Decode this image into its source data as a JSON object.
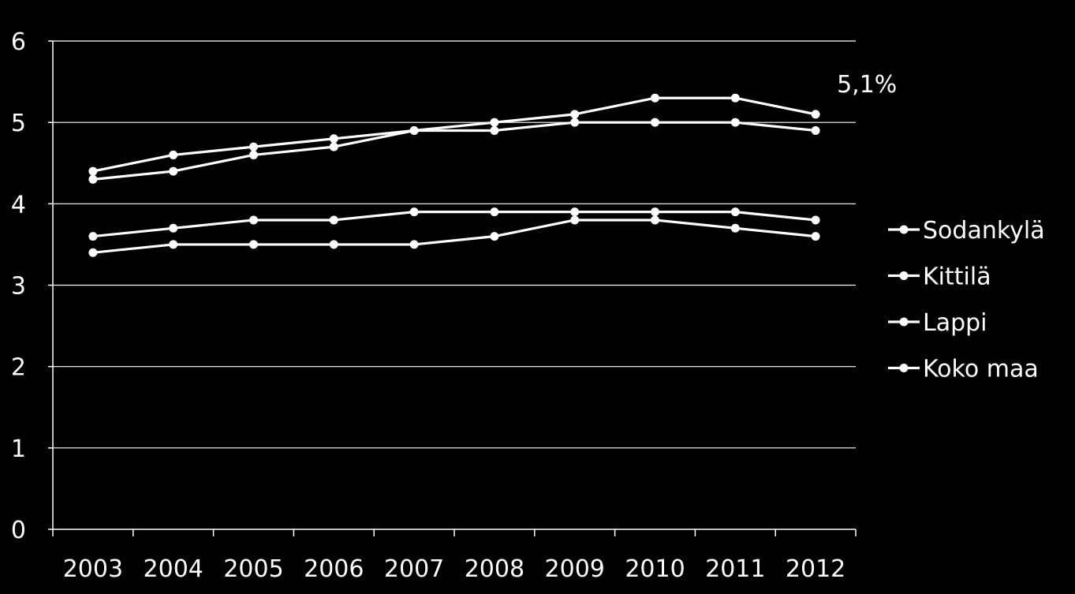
{
  "chart_data": {
    "type": "line",
    "x": [
      "2003",
      "2004",
      "2005",
      "2006",
      "2007",
      "2008",
      "2009",
      "2010",
      "2011",
      "2012"
    ],
    "series": [
      {
        "name": "Sodankylä",
        "values": [
          4.4,
          4.6,
          4.7,
          4.8,
          4.9,
          4.9,
          5.0,
          5.0,
          5.0,
          4.9
        ]
      },
      {
        "name": "Kittilä",
        "values": [
          4.3,
          4.4,
          4.6,
          4.7,
          4.9,
          5.0,
          5.1,
          5.3,
          5.3,
          5.1
        ]
      },
      {
        "name": "Lappi",
        "values": [
          3.6,
          3.7,
          3.8,
          3.8,
          3.9,
          3.9,
          3.9,
          3.9,
          3.9,
          3.8
        ]
      },
      {
        "name": "Koko maa",
        "values": [
          3.4,
          3.5,
          3.5,
          3.5,
          3.5,
          3.6,
          3.8,
          3.8,
          3.7,
          3.6
        ]
      }
    ],
    "y_ticks": [
      "0",
      "1",
      "2",
      "3",
      "4",
      "5",
      "6"
    ],
    "ylim": [
      0,
      6
    ],
    "grid": true,
    "legend": "right",
    "annotations": [
      {
        "text": "5,1%",
        "x": "2012",
        "y": 5.1
      }
    ],
    "colors": {
      "background": "#000000",
      "line": "#ffffff",
      "grid": "#ffffff"
    }
  }
}
